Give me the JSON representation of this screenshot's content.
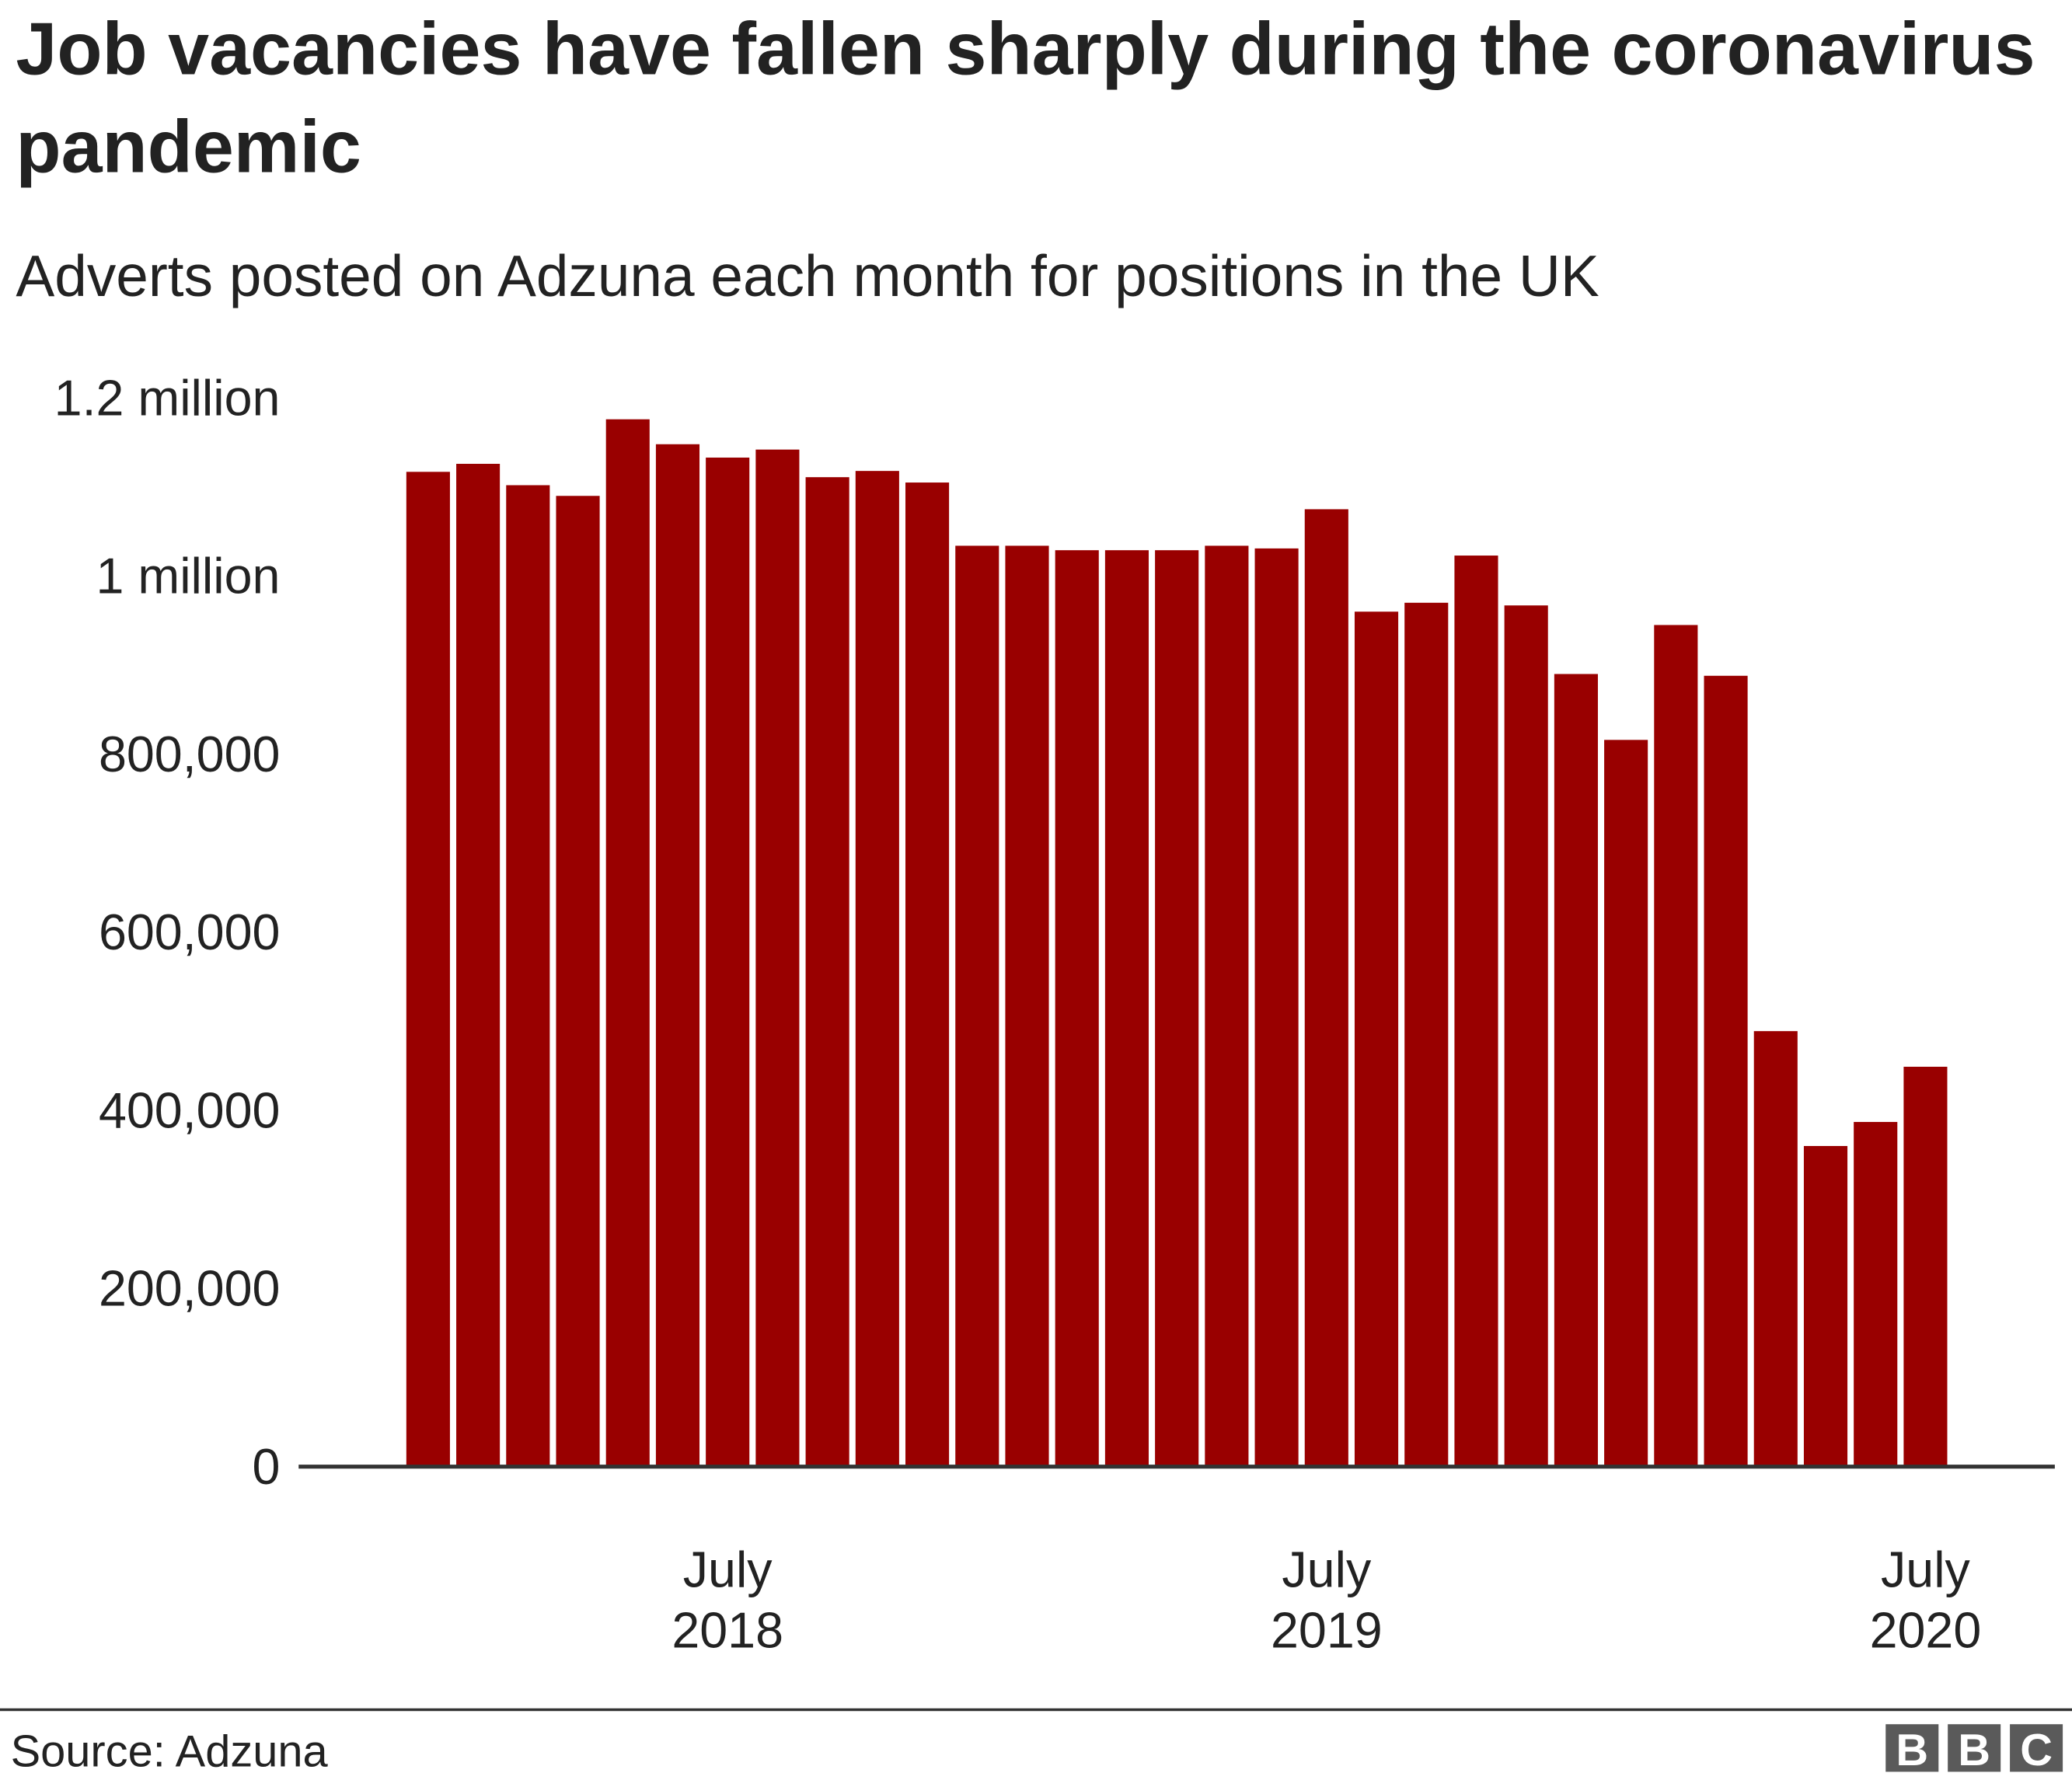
{
  "chart_data": {
    "type": "bar",
    "title": "Job vacancies have fallen sharply during the coronavirus pandemic",
    "subtitle": "Adverts posted on Adzuna each month for positions in the UK",
    "source": "Source: Adzuna",
    "branding": [
      "B",
      "B",
      "C"
    ],
    "categories": [
      null,
      null,
      null,
      null,
      null,
      null,
      "July 2018",
      null,
      null,
      null,
      null,
      null,
      null,
      null,
      null,
      null,
      null,
      null,
      "July 2019",
      null,
      null,
      null,
      null,
      null,
      null,
      null,
      null,
      null,
      null,
      null,
      "July 2020"
    ],
    "values": [
      1117000,
      1126000,
      1102000,
      1090000,
      1176000,
      1148000,
      1133000,
      1142000,
      1111000,
      1118000,
      1105000,
      1034000,
      1034000,
      1029000,
      1029000,
      1029000,
      1034000,
      1031000,
      1075000,
      960000,
      970000,
      1023000,
      967000,
      890000,
      816000,
      945000,
      888000,
      489000,
      360000,
      387000,
      449000
    ],
    "color": "#990000",
    "ylim": [
      0,
      1200000
    ],
    "yticks": [
      0,
      {
        "value": 200000,
        "label": "200,000"
      },
      {
        "value": 400000,
        "label": "400,000"
      },
      {
        "value": 600000,
        "label": "600,000"
      },
      {
        "value": 800000,
        "label": "800,000"
      },
      {
        "value": 1000000,
        "label": "1 million"
      },
      {
        "value": 1200000,
        "label": "1.2 million"
      }
    ],
    "grid": false
  }
}
